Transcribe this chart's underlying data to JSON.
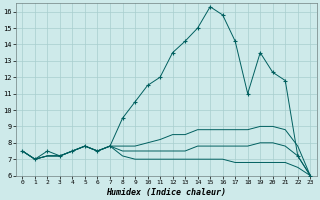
{
  "xlabel": "Humidex (Indice chaleur)",
  "bg_color": "#ceeaea",
  "grid_color": "#a8cece",
  "line_color": "#005f5f",
  "xlim": [
    -0.5,
    23.5
  ],
  "ylim": [
    6,
    16.5
  ],
  "xticks": [
    0,
    1,
    2,
    3,
    4,
    5,
    6,
    7,
    8,
    9,
    10,
    11,
    12,
    13,
    14,
    15,
    16,
    17,
    18,
    19,
    20,
    21,
    22,
    23
  ],
  "yticks": [
    6,
    7,
    8,
    9,
    10,
    11,
    12,
    13,
    14,
    15,
    16
  ],
  "series": {
    "main": [
      7.5,
      7.0,
      7.5,
      7.2,
      7.5,
      7.8,
      7.5,
      7.8,
      9.5,
      10.5,
      11.5,
      12.0,
      13.5,
      14.2,
      15.0,
      16.3,
      15.8,
      14.2,
      11.0,
      13.5,
      12.3,
      11.8,
      7.2,
      6.0
    ],
    "line2": [
      7.5,
      7.0,
      7.2,
      7.2,
      7.5,
      7.8,
      7.5,
      7.8,
      7.8,
      7.8,
      8.0,
      8.2,
      8.5,
      8.5,
      8.8,
      8.8,
      8.8,
      8.8,
      8.8,
      9.0,
      9.0,
      8.8,
      7.8,
      6.0
    ],
    "line3": [
      7.5,
      7.0,
      7.2,
      7.2,
      7.5,
      7.8,
      7.5,
      7.8,
      7.5,
      7.5,
      7.5,
      7.5,
      7.5,
      7.5,
      7.8,
      7.8,
      7.8,
      7.8,
      7.8,
      8.0,
      8.0,
      7.8,
      7.2,
      6.0
    ],
    "line4": [
      7.5,
      7.0,
      7.2,
      7.2,
      7.5,
      7.8,
      7.5,
      7.8,
      7.2,
      7.0,
      7.0,
      7.0,
      7.0,
      7.0,
      7.0,
      7.0,
      7.0,
      6.8,
      6.8,
      6.8,
      6.8,
      6.8,
      6.5,
      6.0
    ]
  }
}
